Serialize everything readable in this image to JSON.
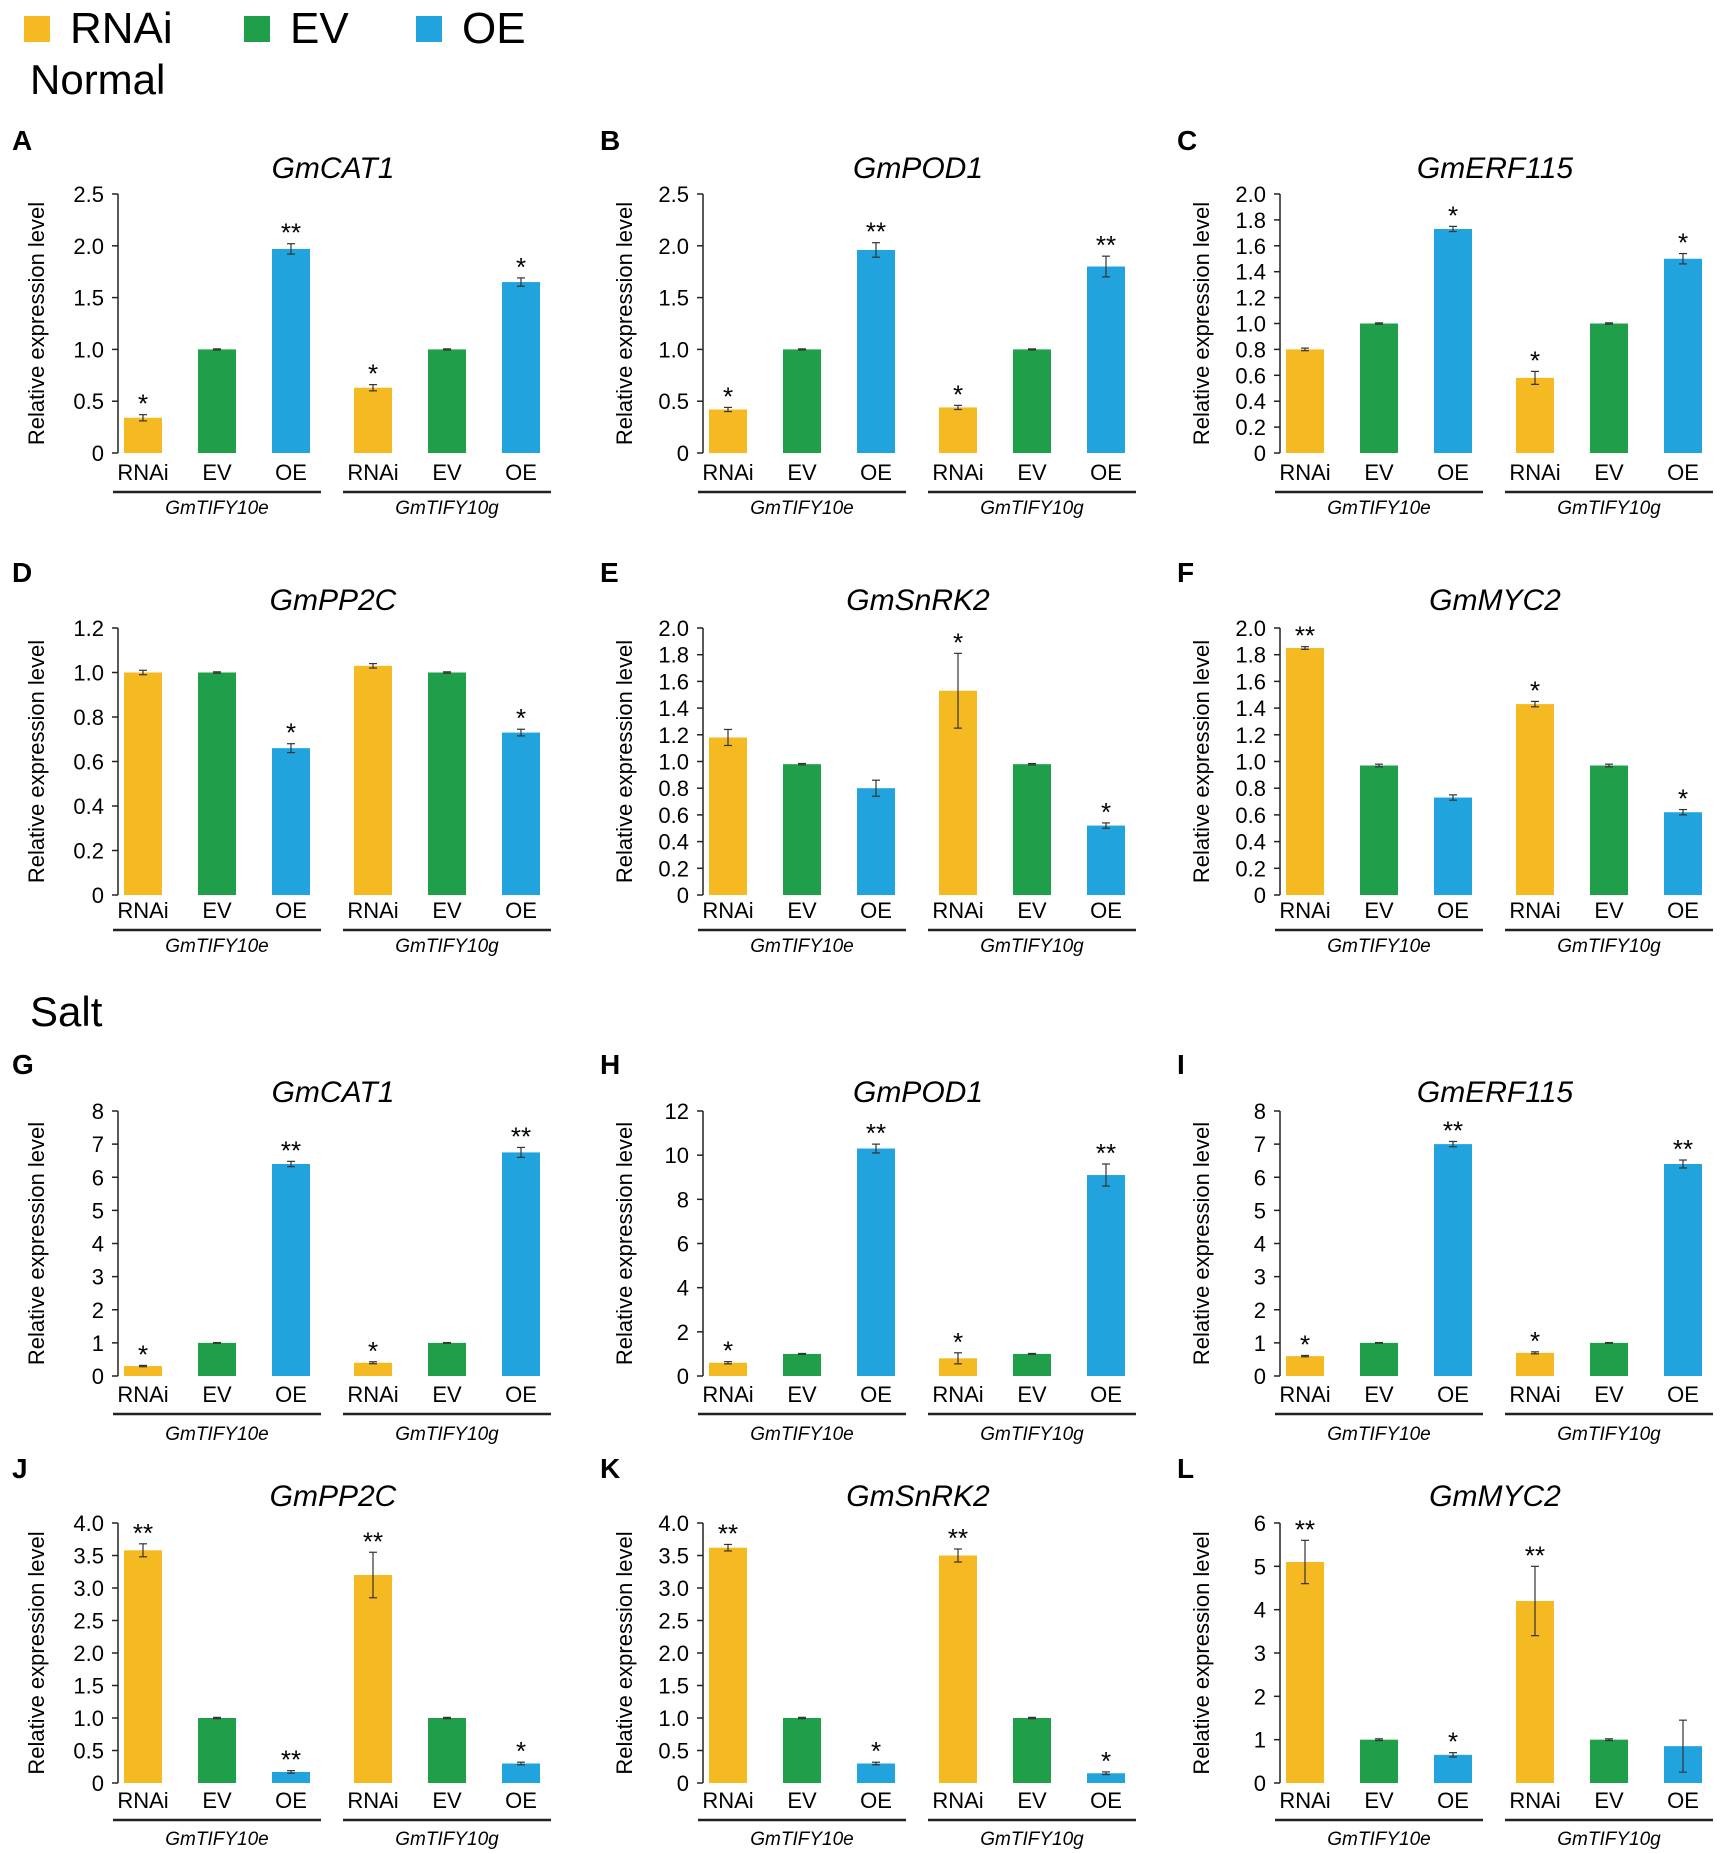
{
  "legend": {
    "items": [
      {
        "label": "RNAi",
        "color": "#F5B921"
      },
      {
        "label": "EV",
        "color": "#1F9F4A"
      },
      {
        "label": "OE",
        "color": "#21A3DD"
      }
    ]
  },
  "sections": {
    "normal": "Normal",
    "salt": "Salt"
  },
  "colors": {
    "RNAi": "#F5B921",
    "EV": "#1F9F4A",
    "OE": "#21A3DD"
  },
  "chart_data": [
    {
      "panel": "A",
      "title": "GmCAT1",
      "type": "bar",
      "ylabel": "Relative expression level",
      "yticks": [
        "0",
        "0.5",
        "1.0",
        "1.5",
        "2.0",
        "2.5"
      ],
      "ylim": [
        0,
        2.5
      ],
      "categories": [
        "RNAi",
        "EV",
        "OE",
        "RNAi",
        "EV",
        "OE"
      ],
      "groups": [
        "GmTIFY10e",
        "GmTIFY10g"
      ],
      "values": [
        0.34,
        1.0,
        1.97,
        0.63,
        1.0,
        1.65
      ],
      "errors": [
        0.03,
        0.005,
        0.05,
        0.03,
        0.005,
        0.04
      ],
      "significance": [
        "*",
        "",
        "**",
        "*",
        "",
        "*"
      ]
    },
    {
      "panel": "B",
      "title": "GmPOD1",
      "type": "bar",
      "ylabel": "Relative expression level",
      "yticks": [
        "0",
        "0.5",
        "1.0",
        "1.5",
        "2.0",
        "2.5"
      ],
      "ylim": [
        0,
        2.5
      ],
      "categories": [
        "RNAi",
        "EV",
        "OE",
        "RNAi",
        "EV",
        "OE"
      ],
      "groups": [
        "GmTIFY10e",
        "GmTIFY10g"
      ],
      "values": [
        0.42,
        1.0,
        1.96,
        0.44,
        1.0,
        1.8
      ],
      "errors": [
        0.02,
        0.005,
        0.07,
        0.02,
        0.005,
        0.1
      ],
      "significance": [
        "*",
        "",
        "**",
        "*",
        "",
        "**"
      ]
    },
    {
      "panel": "C",
      "title": "GmERF115",
      "type": "bar",
      "ylabel": "Relative expression level",
      "yticks": [
        "0",
        "0.2",
        "0.4",
        "0.6",
        "0.8",
        "1.0",
        "1.2",
        "1.4",
        "1.6",
        "1.8",
        "2.0"
      ],
      "ylim": [
        0,
        2.0
      ],
      "categories": [
        "RNAi",
        "EV",
        "OE",
        "RNAi",
        "EV",
        "OE"
      ],
      "groups": [
        "GmTIFY10e",
        "GmTIFY10g"
      ],
      "values": [
        0.8,
        1.0,
        1.73,
        0.58,
        1.0,
        1.5
      ],
      "errors": [
        0.01,
        0.005,
        0.02,
        0.05,
        0.005,
        0.04
      ],
      "significance": [
        "",
        "",
        "*",
        "*",
        "",
        "*"
      ]
    },
    {
      "panel": "D",
      "title": "GmPP2C",
      "type": "bar",
      "ylabel": "Relative expression level",
      "yticks": [
        "0",
        "0.2",
        "0.4",
        "0.6",
        "0.8",
        "1.0",
        "1.2"
      ],
      "ylim": [
        0,
        1.2
      ],
      "categories": [
        "RNAi",
        "EV",
        "OE",
        "RNAi",
        "EV",
        "OE"
      ],
      "groups": [
        "GmTIFY10e",
        "GmTIFY10g"
      ],
      "values": [
        1.0,
        1.0,
        0.66,
        1.03,
        1.0,
        0.73
      ],
      "errors": [
        0.01,
        0.003,
        0.02,
        0.01,
        0.003,
        0.015
      ],
      "significance": [
        "",
        "",
        "*",
        "",
        "",
        "*"
      ]
    },
    {
      "panel": "E",
      "title": "GmSnRK2",
      "type": "bar",
      "ylabel": "Relative expression level",
      "yticks": [
        "0",
        "0.2",
        "0.4",
        "0.6",
        "0.8",
        "1.0",
        "1.2",
        "1.4",
        "1.6",
        "1.8",
        "2.0"
      ],
      "ylim": [
        0,
        2.0
      ],
      "categories": [
        "RNAi",
        "EV",
        "OE",
        "RNAi",
        "EV",
        "OE"
      ],
      "groups": [
        "GmTIFY10e",
        "GmTIFY10g"
      ],
      "values": [
        1.18,
        0.98,
        0.8,
        1.53,
        0.98,
        0.52
      ],
      "errors": [
        0.06,
        0.005,
        0.06,
        0.28,
        0.005,
        0.02
      ],
      "significance": [
        "",
        "",
        "",
        "*",
        "",
        "*"
      ]
    },
    {
      "panel": "F",
      "title": "GmMYC2",
      "type": "bar",
      "ylabel": "Relative expression level",
      "yticks": [
        "0",
        "0.2",
        "0.4",
        "0.6",
        "0.8",
        "1.0",
        "1.2",
        "1.4",
        "1.6",
        "1.8",
        "2.0"
      ],
      "ylim": [
        0,
        2.0
      ],
      "categories": [
        "RNAi",
        "EV",
        "OE",
        "RNAi",
        "EV",
        "OE"
      ],
      "groups": [
        "GmTIFY10e",
        "GmTIFY10g"
      ],
      "values": [
        1.85,
        0.97,
        0.73,
        1.43,
        0.97,
        0.62
      ],
      "errors": [
        0.01,
        0.01,
        0.02,
        0.02,
        0.01,
        0.02
      ],
      "significance": [
        "**",
        "",
        "",
        "*",
        "",
        "*"
      ]
    },
    {
      "panel": "G",
      "title": "GmCAT1",
      "type": "bar",
      "ylabel": "Relative expression level",
      "yticks": [
        "0",
        "1",
        "2",
        "3",
        "4",
        "5",
        "6",
        "7",
        "8"
      ],
      "ylim": [
        0,
        8
      ],
      "categories": [
        "RNAi",
        "EV",
        "OE",
        "RNAi",
        "EV",
        "OE"
      ],
      "groups": [
        "GmTIFY10e",
        "GmTIFY10g"
      ],
      "values": [
        0.3,
        1.0,
        6.4,
        0.4,
        1.0,
        6.75
      ],
      "errors": [
        0.02,
        0.01,
        0.08,
        0.03,
        0.01,
        0.15
      ],
      "significance": [
        "*",
        "",
        "**",
        "*",
        "",
        "**"
      ]
    },
    {
      "panel": "H",
      "title": "GmPOD1",
      "type": "bar",
      "ylabel": "Relative expression level",
      "yticks": [
        "0",
        "2",
        "4",
        "6",
        "8",
        "10",
        "12"
      ],
      "ylim": [
        0,
        12
      ],
      "categories": [
        "RNAi",
        "EV",
        "OE",
        "RNAi",
        "EV",
        "OE"
      ],
      "groups": [
        "GmTIFY10e",
        "GmTIFY10g"
      ],
      "values": [
        0.6,
        1.0,
        10.3,
        0.8,
        1.0,
        9.1
      ],
      "errors": [
        0.05,
        0.02,
        0.2,
        0.25,
        0.02,
        0.5
      ],
      "significance": [
        "*",
        "",
        "**",
        "*",
        "",
        "**"
      ]
    },
    {
      "panel": "I",
      "title": "GmERF115",
      "type": "bar",
      "ylabel": "Relative expression level",
      "yticks": [
        "0",
        "1",
        "2",
        "3",
        "4",
        "5",
        "6",
        "7",
        "8"
      ],
      "ylim": [
        0,
        8
      ],
      "categories": [
        "RNAi",
        "EV",
        "OE",
        "RNAi",
        "EV",
        "OE"
      ],
      "groups": [
        "GmTIFY10e",
        "GmTIFY10g"
      ],
      "values": [
        0.6,
        1.0,
        7.0,
        0.7,
        1.0,
        6.4
      ],
      "errors": [
        0.02,
        0.01,
        0.08,
        0.03,
        0.01,
        0.12
      ],
      "significance": [
        "*",
        "",
        "**",
        "*",
        "",
        "**"
      ]
    },
    {
      "panel": "J",
      "title": "GmPP2C",
      "type": "bar",
      "ylabel": "Relative expression level",
      "yticks": [
        "0",
        "0.5",
        "1.0",
        "1.5",
        "2.0",
        "2.5",
        "3.0",
        "3.5",
        "4.0"
      ],
      "ylim": [
        0,
        4.0
      ],
      "categories": [
        "RNAi",
        "EV",
        "OE",
        "RNAi",
        "EV",
        "OE"
      ],
      "groups": [
        "GmTIFY10e",
        "GmTIFY10g"
      ],
      "values": [
        3.58,
        1.0,
        0.17,
        3.2,
        1.0,
        0.3
      ],
      "errors": [
        0.1,
        0.01,
        0.02,
        0.35,
        0.01,
        0.02
      ],
      "significance": [
        "**",
        "",
        "**",
        "**",
        "",
        "*"
      ]
    },
    {
      "panel": "K",
      "title": "GmSnRK2",
      "type": "bar",
      "ylabel": "Relative expression level",
      "yticks": [
        "0",
        "0.5",
        "1.0",
        "1.5",
        "2.0",
        "2.5",
        "3.0",
        "3.5",
        "4.0"
      ],
      "ylim": [
        0,
        4.0
      ],
      "categories": [
        "RNAi",
        "EV",
        "OE",
        "RNAi",
        "EV",
        "OE"
      ],
      "groups": [
        "GmTIFY10e",
        "GmTIFY10g"
      ],
      "values": [
        3.62,
        1.0,
        0.3,
        3.5,
        1.0,
        0.15
      ],
      "errors": [
        0.05,
        0.01,
        0.02,
        0.1,
        0.01,
        0.02
      ],
      "significance": [
        "**",
        "",
        "*",
        "**",
        "",
        "*"
      ]
    },
    {
      "panel": "L",
      "title": "GmMYC2",
      "type": "bar",
      "ylabel": "Relative expression level",
      "yticks": [
        "0",
        "1",
        "2",
        "3",
        "4",
        "5",
        "6"
      ],
      "ylim": [
        0,
        6
      ],
      "categories": [
        "RNAi",
        "EV",
        "OE",
        "RNAi",
        "EV",
        "OE"
      ],
      "groups": [
        "GmTIFY10e",
        "GmTIFY10g"
      ],
      "values": [
        5.1,
        1.0,
        0.65,
        4.2,
        1.0,
        0.85
      ],
      "errors": [
        0.5,
        0.02,
        0.05,
        0.8,
        0.02,
        0.6
      ],
      "significance": [
        "**",
        "",
        "*",
        "**",
        "",
        ""
      ]
    }
  ]
}
